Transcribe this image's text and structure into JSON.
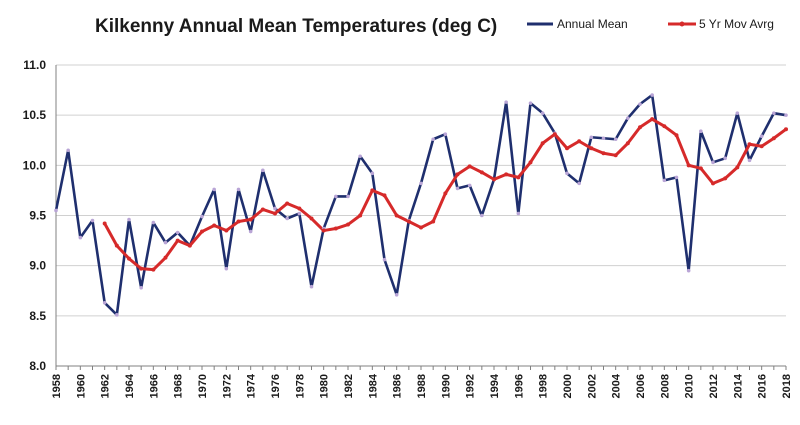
{
  "chart_data": {
    "type": "line",
    "title": "Kilkenny Annual Mean Temperatures (deg  C)",
    "xlabel": "",
    "ylabel": "",
    "ylim": [
      8.0,
      11.0
    ],
    "y_ticks": [
      "8.0",
      "8.5",
      "9.0",
      "9.5",
      "10.0",
      "10.5",
      "11.0"
    ],
    "x_tick_labels": [
      "1958",
      "1960",
      "1962",
      "1964",
      "1966",
      "1968",
      "1970",
      "1972",
      "1974",
      "1976",
      "1978",
      "1980",
      "1982",
      "1984",
      "1986",
      "1988",
      "1990",
      "1992",
      "1994",
      "1996",
      "1998",
      "2000",
      "2002",
      "2004",
      "2006",
      "2008",
      "2010",
      "2012",
      "2014",
      "2016",
      "2018"
    ],
    "grid": true,
    "legend_position": "top-right",
    "colors": {
      "annual": "#1f2f6e",
      "moving": "#d62a2a",
      "markers": "#b9a5d6",
      "grid": "#d0d0d0"
    },
    "series": [
      {
        "name": "Annual Mean",
        "x": [
          1958,
          1959,
          1960,
          1961,
          1962,
          1963,
          1964,
          1965,
          1966,
          1967,
          1968,
          1969,
          1970,
          1971,
          1972,
          1973,
          1974,
          1975,
          1976,
          1977,
          1978,
          1979,
          1980,
          1981,
          1982,
          1983,
          1984,
          1985,
          1986,
          1987,
          1988,
          1989,
          1990,
          1991,
          1992,
          1993,
          1994,
          1995,
          1996,
          1997,
          1998,
          1999,
          2000,
          2001,
          2002,
          2003,
          2004,
          2005,
          2006,
          2007,
          2008,
          2009,
          2010,
          2011,
          2012,
          2013,
          2014,
          2015,
          2016,
          2017,
          2018
        ],
        "values": [
          9.55,
          10.15,
          9.28,
          9.45,
          8.63,
          8.51,
          9.46,
          8.78,
          9.43,
          9.23,
          9.33,
          9.2,
          9.49,
          9.76,
          8.97,
          9.76,
          9.34,
          9.95,
          9.57,
          9.47,
          9.52,
          8.79,
          9.37,
          9.69,
          9.69,
          10.09,
          9.92,
          9.06,
          8.71,
          9.45,
          9.82,
          10.26,
          10.31,
          9.77,
          9.8,
          9.5,
          9.86,
          10.63,
          9.52,
          10.62,
          10.52,
          10.32,
          9.92,
          9.82,
          10.28,
          10.27,
          10.26,
          10.47,
          10.61,
          10.7,
          9.85,
          9.88,
          8.95,
          10.34,
          10.03,
          10.07,
          10.52,
          10.05,
          10.29,
          10.52,
          10.5
        ]
      },
      {
        "name": "5 Yr Mov Avrg",
        "x": [
          1962,
          1963,
          1964,
          1965,
          1966,
          1967,
          1968,
          1969,
          1970,
          1971,
          1972,
          1973,
          1974,
          1975,
          1976,
          1977,
          1978,
          1979,
          1980,
          1981,
          1982,
          1983,
          1984,
          1985,
          1986,
          1987,
          1988,
          1989,
          1990,
          1991,
          1992,
          1993,
          1994,
          1995,
          1996,
          1997,
          1998,
          1999,
          2000,
          2001,
          2002,
          2003,
          2004,
          2005,
          2006,
          2007,
          2008,
          2009,
          2010,
          2011,
          2012,
          2013,
          2014,
          2015,
          2016,
          2017,
          2018
        ],
        "values": [
          9.42,
          9.2,
          9.07,
          8.97,
          8.96,
          9.08,
          9.25,
          9.2,
          9.34,
          9.4,
          9.35,
          9.44,
          9.46,
          9.56,
          9.52,
          9.62,
          9.57,
          9.47,
          9.35,
          9.37,
          9.41,
          9.5,
          9.75,
          9.7,
          9.5,
          9.44,
          9.38,
          9.44,
          9.72,
          9.91,
          9.99,
          9.93,
          9.86,
          9.91,
          9.88,
          10.03,
          10.22,
          10.31,
          10.17,
          10.24,
          10.17,
          10.12,
          10.1,
          10.22,
          10.38,
          10.46,
          10.39,
          10.3,
          10.0,
          9.97,
          9.82,
          9.87,
          9.98,
          10.21,
          10.19,
          10.27,
          10.36
        ]
      }
    ]
  }
}
